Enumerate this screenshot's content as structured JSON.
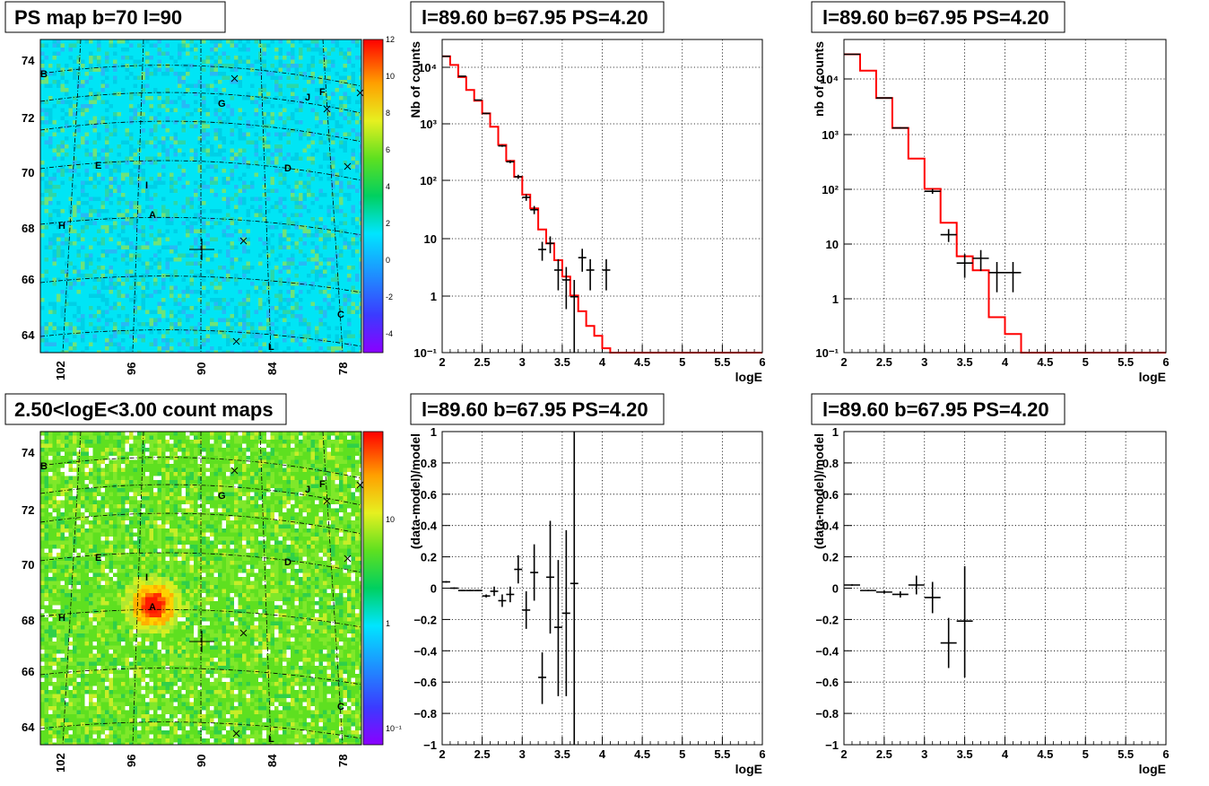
{
  "maps": [
    {
      "id": "ps-map",
      "title": "PS map b=70 l=90",
      "y_ticks": [
        "74",
        "72",
        "70",
        "68",
        "66",
        "64"
      ],
      "x_ticks": [
        "102",
        "96",
        "90",
        "84",
        "78"
      ],
      "palette": {
        "type": "linear",
        "labels": [
          "12",
          "10",
          "8",
          "6",
          "4",
          "2",
          "0",
          "-2",
          "-4"
        ]
      },
      "markers": [
        "A",
        "B",
        "C",
        "D",
        "E",
        "F",
        "G",
        "H",
        "I",
        "J",
        "L"
      ]
    },
    {
      "id": "count-map",
      "title": "2.50<logE<3.00 count maps",
      "y_ticks": [
        "74",
        "72",
        "70",
        "68",
        "66",
        "64"
      ],
      "x_ticks": [
        "102",
        "96",
        "90",
        "84",
        "78"
      ],
      "palette": {
        "type": "log",
        "labels": [
          "10",
          "1",
          "10⁻¹"
        ]
      },
      "markers": [
        "A",
        "B",
        "C",
        "D",
        "E",
        "F",
        "G",
        "H",
        "I",
        "J",
        "L"
      ]
    }
  ],
  "colors": {
    "model_line": "#ff0000",
    "data": "#000000"
  },
  "chart_data": [
    {
      "id": "counts-left",
      "type": "line",
      "title": "l=89.60 b=67.95 PS=4.20",
      "xlabel": "logE",
      "ylabel": "Nb of counts",
      "xlim": [
        2,
        6
      ],
      "ylim": [
        0.1,
        40000
      ],
      "yscale": "log",
      "grid": true,
      "x_ticks": [
        "2",
        "2.5",
        "3",
        "3.5",
        "4",
        "4.5",
        "5",
        "5.5",
        "6"
      ],
      "y_ticks": [
        "10⁴",
        "10³",
        "10²",
        "10",
        "1",
        "10⁻¹"
      ],
      "model": {
        "edges": [
          2.0,
          2.1,
          2.2,
          2.3,
          2.4,
          2.5,
          2.6,
          2.7,
          2.8,
          2.9,
          3.0,
          3.1,
          3.2,
          3.3,
          3.4,
          3.5,
          3.6,
          3.7,
          3.8,
          3.9,
          4.0,
          4.1,
          6.0
        ],
        "values": [
          20000,
          14000,
          8500,
          5000,
          3200,
          1900,
          1100,
          520,
          270,
          140,
          67,
          38,
          16,
          9,
          4.5,
          2.3,
          1.05,
          0.55,
          0.3,
          0.2,
          0.12,
          0.1
        ]
      },
      "data": [
        {
          "x": 2.05,
          "y": 20000,
          "xerr": 0.05,
          "ylo": 19800,
          "yhi": 20200
        },
        {
          "x": 2.25,
          "y": 8800,
          "xerr": 0.05,
          "ylo": 8700,
          "yhi": 8900
        },
        {
          "x": 2.45,
          "y": 3300,
          "xerr": 0.05,
          "ylo": 3250,
          "yhi": 3350
        },
        {
          "x": 2.55,
          "y": 1900,
          "xerr": 0.05,
          "ylo": 1850,
          "yhi": 1950
        },
        {
          "x": 2.75,
          "y": 500,
          "xerr": 0.05,
          "ylo": 480,
          "yhi": 520
        },
        {
          "x": 2.85,
          "y": 260,
          "xerr": 0.05,
          "ylo": 245,
          "yhi": 275
        },
        {
          "x": 2.95,
          "y": 140,
          "xerr": 0.05,
          "ylo": 128,
          "yhi": 152
        },
        {
          "x": 3.05,
          "y": 60,
          "xerr": 0.05,
          "ylo": 52,
          "yhi": 68
        },
        {
          "x": 3.15,
          "y": 36,
          "xerr": 0.05,
          "ylo": 30,
          "yhi": 42
        },
        {
          "x": 3.25,
          "y": 7,
          "xerr": 0.05,
          "ylo": 4.4,
          "yhi": 9.6
        },
        {
          "x": 3.35,
          "y": 9,
          "xerr": 0.05,
          "ylo": 6,
          "yhi": 12
        },
        {
          "x": 3.45,
          "y": 3,
          "xerr": 0.05,
          "ylo": 1.3,
          "yhi": 4.7
        },
        {
          "x": 3.55,
          "y": 2,
          "xerr": 0.05,
          "ylo": 0.6,
          "yhi": 3.4
        },
        {
          "x": 3.65,
          "y": 1,
          "xerr": 0.05,
          "ylo": 0.1,
          "yhi": 2
        },
        {
          "x": 3.75,
          "y": 5,
          "xerr": 0.05,
          "ylo": 2.8,
          "yhi": 7.2
        },
        {
          "x": 3.85,
          "y": 3,
          "xerr": 0.05,
          "ylo": 1.3,
          "yhi": 4.7
        },
        {
          "x": 4.05,
          "y": 3,
          "xerr": 0.05,
          "ylo": 1.3,
          "yhi": 4.7
        }
      ]
    },
    {
      "id": "counts-right",
      "type": "line",
      "title": "l=89.60 b=67.95 PS=4.20",
      "xlabel": "logE",
      "ylabel": "nb of counts",
      "xlim": [
        2,
        6
      ],
      "ylim": [
        0.1,
        60000
      ],
      "yscale": "log",
      "grid": true,
      "x_ticks": [
        "2",
        "2.5",
        "3",
        "3.5",
        "4",
        "4.5",
        "5",
        "5.5",
        "6"
      ],
      "y_ticks": [
        "10⁴",
        "10³",
        "10²",
        "10",
        "1",
        "10⁻¹"
      ],
      "model": {
        "edges": [
          2.0,
          2.2,
          2.4,
          2.6,
          2.8,
          3.0,
          3.2,
          3.4,
          3.6,
          3.8,
          4.0,
          4.2,
          6.0
        ],
        "values": [
          32000,
          16000,
          5000,
          1400,
          380,
          105,
          25,
          6,
          3.3,
          0.45,
          0.22,
          0.1
        ]
      },
      "data": [
        {
          "x": 2.1,
          "y": 32000,
          "xerr": 0.1,
          "ylo": 31800,
          "yhi": 32200
        },
        {
          "x": 2.5,
          "y": 5000,
          "xerr": 0.1,
          "ylo": 4930,
          "yhi": 5070
        },
        {
          "x": 2.7,
          "y": 1400,
          "xerr": 0.1,
          "ylo": 1360,
          "yhi": 1440
        },
        {
          "x": 3.1,
          "y": 95,
          "xerr": 0.1,
          "ylo": 85,
          "yhi": 105
        },
        {
          "x": 3.3,
          "y": 15,
          "xerr": 0.1,
          "ylo": 11,
          "yhi": 19
        },
        {
          "x": 3.5,
          "y": 4.5,
          "xerr": 0.1,
          "ylo": 2.4,
          "yhi": 6.6
        },
        {
          "x": 3.7,
          "y": 5.5,
          "xerr": 0.1,
          "ylo": 3.2,
          "yhi": 7.8
        },
        {
          "x": 3.9,
          "y": 3,
          "xerr": 0.1,
          "ylo": 1.3,
          "yhi": 4.7
        },
        {
          "x": 4.1,
          "y": 3,
          "xerr": 0.1,
          "ylo": 1.3,
          "yhi": 4.7
        }
      ]
    },
    {
      "id": "residual-left",
      "type": "scatter",
      "title": "l=89.60 b=67.95 PS=4.20",
      "xlabel": "logE",
      "ylabel": "(data-model)/model",
      "xlim": [
        2,
        6
      ],
      "ylim": [
        -1,
        1
      ],
      "grid": true,
      "x_ticks": [
        "2",
        "2.5",
        "3",
        "3.5",
        "4",
        "4.5",
        "5",
        "5.5",
        "6"
      ],
      "y_ticks": [
        "1",
        "0.8",
        "0.6",
        "0.4",
        "0.2",
        "0",
        "−0.2",
        "−0.4",
        "−0.6",
        "−0.8",
        "−1"
      ],
      "data": [
        {
          "x": 2.05,
          "y": 0.04,
          "xerr": 0.05,
          "ylo": 0.035,
          "yhi": 0.045
        },
        {
          "x": 2.15,
          "y": 0.0,
          "xerr": 0.05,
          "ylo": -0.005,
          "yhi": 0.005
        },
        {
          "x": 2.25,
          "y": -0.015,
          "xerr": 0.05,
          "ylo": -0.02,
          "yhi": -0.01
        },
        {
          "x": 2.35,
          "y": -0.015,
          "xerr": 0.05,
          "ylo": -0.02,
          "yhi": -0.01
        },
        {
          "x": 2.45,
          "y": -0.015,
          "xerr": 0.05,
          "ylo": -0.02,
          "yhi": -0.01
        },
        {
          "x": 2.55,
          "y": -0.05,
          "xerr": 0.05,
          "ylo": -0.06,
          "yhi": -0.04
        },
        {
          "x": 2.65,
          "y": -0.02,
          "xerr": 0.05,
          "ylo": -0.05,
          "yhi": 0.01
        },
        {
          "x": 2.75,
          "y": -0.08,
          "xerr": 0.05,
          "ylo": -0.12,
          "yhi": -0.04
        },
        {
          "x": 2.85,
          "y": -0.04,
          "xerr": 0.05,
          "ylo": -0.09,
          "yhi": 0.01
        },
        {
          "x": 2.95,
          "y": 0.12,
          "xerr": 0.05,
          "ylo": 0.03,
          "yhi": 0.21
        },
        {
          "x": 3.05,
          "y": -0.14,
          "xerr": 0.05,
          "ylo": -0.26,
          "yhi": -0.02
        },
        {
          "x": 3.15,
          "y": 0.1,
          "xerr": 0.05,
          "ylo": -0.08,
          "yhi": 0.28
        },
        {
          "x": 3.25,
          "y": -0.57,
          "xerr": 0.05,
          "ylo": -0.74,
          "yhi": -0.41
        },
        {
          "x": 3.35,
          "y": 0.07,
          "xerr": 0.05,
          "ylo": -0.29,
          "yhi": 0.43
        },
        {
          "x": 3.45,
          "y": -0.25,
          "xerr": 0.05,
          "ylo": -0.69,
          "yhi": 0.18
        },
        {
          "x": 3.55,
          "y": -0.16,
          "xerr": 0.05,
          "ylo": -0.69,
          "yhi": 0.37
        },
        {
          "x": 3.65,
          "y": 0.03,
          "xerr": 0.05,
          "ylo": -1.0,
          "yhi": 1.0
        }
      ]
    },
    {
      "id": "residual-right",
      "type": "scatter",
      "title": "l=89.60 b=67.95 PS=4.20",
      "xlabel": "logE",
      "ylabel": "(data-model)/model",
      "xlim": [
        2,
        6
      ],
      "ylim": [
        -1,
        1
      ],
      "grid": true,
      "x_ticks": [
        "2",
        "2.5",
        "3",
        "3.5",
        "4",
        "4.5",
        "5",
        "5.5",
        "6"
      ],
      "y_ticks": [
        "1",
        "0.8",
        "0.6",
        "0.4",
        "0.2",
        "0",
        "−0.2",
        "−0.4",
        "−0.6",
        "−0.8",
        "−1"
      ],
      "data": [
        {
          "x": 2.1,
          "y": 0.02,
          "xerr": 0.1,
          "ylo": 0.015,
          "yhi": 0.025
        },
        {
          "x": 2.3,
          "y": -0.015,
          "xerr": 0.1,
          "ylo": -0.02,
          "yhi": -0.01
        },
        {
          "x": 2.5,
          "y": -0.025,
          "xerr": 0.1,
          "ylo": -0.035,
          "yhi": -0.015
        },
        {
          "x": 2.7,
          "y": -0.04,
          "xerr": 0.1,
          "ylo": -0.06,
          "yhi": -0.02
        },
        {
          "x": 2.9,
          "y": 0.02,
          "xerr": 0.1,
          "ylo": -0.04,
          "yhi": 0.08
        },
        {
          "x": 3.1,
          "y": -0.06,
          "xerr": 0.1,
          "ylo": -0.16,
          "yhi": 0.04
        },
        {
          "x": 3.3,
          "y": -0.35,
          "xerr": 0.1,
          "ylo": -0.51,
          "yhi": -0.19
        },
        {
          "x": 3.5,
          "y": -0.21,
          "xerr": 0.1,
          "ylo": -0.57,
          "yhi": 0.14
        }
      ]
    }
  ]
}
